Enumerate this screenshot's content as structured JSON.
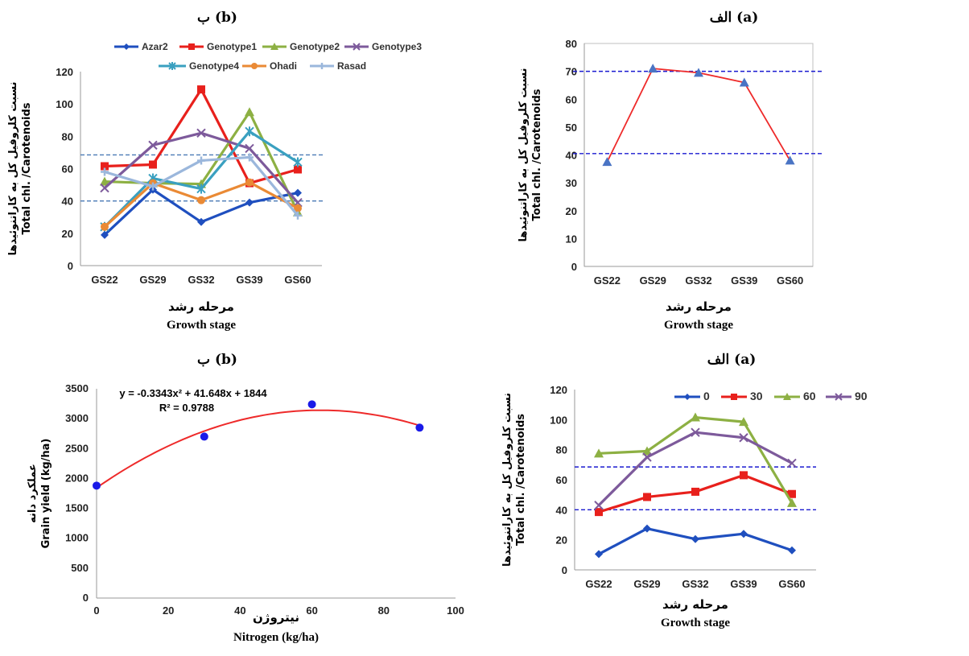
{
  "chart_data": [
    {
      "id": "top_left",
      "type": "line",
      "title": "ب  (b)",
      "xlabel": "مرحله رشد",
      "xlabel_en": "Growth stage",
      "ylabel": "نسبت کلروفیل کل به کاراتنوئیدها",
      "ylabel_en": "Total chl. /Carotenoids",
      "categories": [
        "GS22",
        "GS29",
        "GS32",
        "GS39",
        "GS60"
      ],
      "ylim": [
        0,
        120
      ],
      "yticks": [
        0,
        20,
        40,
        60,
        80,
        100,
        120
      ],
      "reference_lines": [
        40,
        68.5
      ],
      "reference_color": "#4a7ab5",
      "legend_position": "top",
      "series": [
        {
          "name": "Azar2",
          "color": "#1f4fbf",
          "marker": "diamond",
          "values": [
            19,
            47,
            27,
            39,
            45
          ]
        },
        {
          "name": "Genotype1",
          "color": "#e8201c",
          "marker": "square",
          "values": [
            61.5,
            62.5,
            109,
            51,
            59.5
          ]
        },
        {
          "name": "Genotype2",
          "color": "#8db043",
          "marker": "triangle",
          "values": [
            52,
            51,
            50.5,
            95,
            33
          ]
        },
        {
          "name": "Genotype3",
          "color": "#7d5a9b",
          "marker": "x",
          "values": [
            48,
            74.5,
            82,
            72.5,
            39
          ]
        },
        {
          "name": "Genotype4",
          "color": "#3aa0c0",
          "marker": "star",
          "values": [
            24,
            54,
            47.5,
            83,
            64
          ]
        },
        {
          "name": "Ohadi",
          "color": "#ea8a35",
          "marker": "circle",
          "values": [
            24,
            51,
            40.5,
            51.5,
            35.5
          ]
        },
        {
          "name": "Rasad",
          "color": "#9bb7dc",
          "marker": "plus",
          "values": [
            58,
            49,
            65,
            67,
            31
          ]
        }
      ]
    },
    {
      "id": "top_right",
      "type": "line",
      "title": "الف  (a)",
      "xlabel": "مرحله رشد",
      "xlabel_en": "Growth stage",
      "ylabel": "نسبت کلروفیل کل به کاراتنوئیدها",
      "ylabel_en": "Total chl. /Carotenoids",
      "categories": [
        "GS22",
        "GS29",
        "GS32",
        "GS39",
        "GS60"
      ],
      "ylim": [
        0,
        80
      ],
      "yticks": [
        0,
        10,
        20,
        30,
        40,
        50,
        60,
        70,
        80
      ],
      "reference_lines": [
        40.5,
        70
      ],
      "reference_color": "#1a1ad0",
      "series": [
        {
          "color": "#ee2a2a",
          "marker_color": "#4a74c4",
          "marker": "triangle",
          "values": [
            37.5,
            71,
            69.5,
            66,
            38
          ]
        }
      ]
    },
    {
      "id": "bottom_left",
      "type": "scatter",
      "title": "ب  (b)",
      "xlabel": "نیتروژن",
      "xlabel_en": "Nitrogen (kg/ha)",
      "ylabel": "عملکرد دانه",
      "ylabel_en": "Grain yield (kg/ha)",
      "xlim": [
        0,
        100
      ],
      "xticks": [
        0,
        20,
        40,
        60,
        80,
        100
      ],
      "ylim": [
        0,
        3500
      ],
      "yticks": [
        0,
        500,
        1000,
        1500,
        2000,
        2500,
        3000,
        3500
      ],
      "equation": "y = -0.3343x² + 41.648x + 1844",
      "r_squared": "R² = 0.9788",
      "trend_coefficients": [
        -0.3343,
        41.648,
        1844
      ],
      "trend_color": "#ee2a2a",
      "point_color": "#1a1ae8",
      "points": [
        {
          "x": 0,
          "y": 1880
        },
        {
          "x": 30,
          "y": 2700
        },
        {
          "x": 60,
          "y": 3240
        },
        {
          "x": 90,
          "y": 2850
        }
      ]
    },
    {
      "id": "bottom_right",
      "type": "line",
      "title": "الف  (a)",
      "xlabel": "مرحله رشد",
      "xlabel_en": "Growth stage",
      "ylabel": "نسبت کلروفیل کل به کاراتنوئیدها",
      "ylabel_en": "Total chl. /Carotenoids",
      "categories": [
        "GS22",
        "GS29",
        "GS32",
        "GS39",
        "GS60"
      ],
      "ylim": [
        0,
        120
      ],
      "yticks": [
        0,
        20,
        40,
        60,
        80,
        100,
        120
      ],
      "reference_lines": [
        40,
        68.5
      ],
      "reference_color": "#1a1ad0",
      "legend_position": "top",
      "series": [
        {
          "name": "0",
          "color": "#1f4fbf",
          "marker": "diamond",
          "values": [
            10.5,
            27.5,
            20.5,
            24,
            13
          ]
        },
        {
          "name": "30",
          "color": "#e8201c",
          "marker": "square",
          "values": [
            38.5,
            48.5,
            52,
            63,
            50.5
          ]
        },
        {
          "name": "60",
          "color": "#8db043",
          "marker": "triangle",
          "values": [
            77.5,
            79,
            101.5,
            98.5,
            44.5
          ]
        },
        {
          "name": "90",
          "color": "#7d5a9b",
          "marker": "x",
          "values": [
            43,
            75,
            91.5,
            88,
            71
          ]
        }
      ]
    }
  ]
}
